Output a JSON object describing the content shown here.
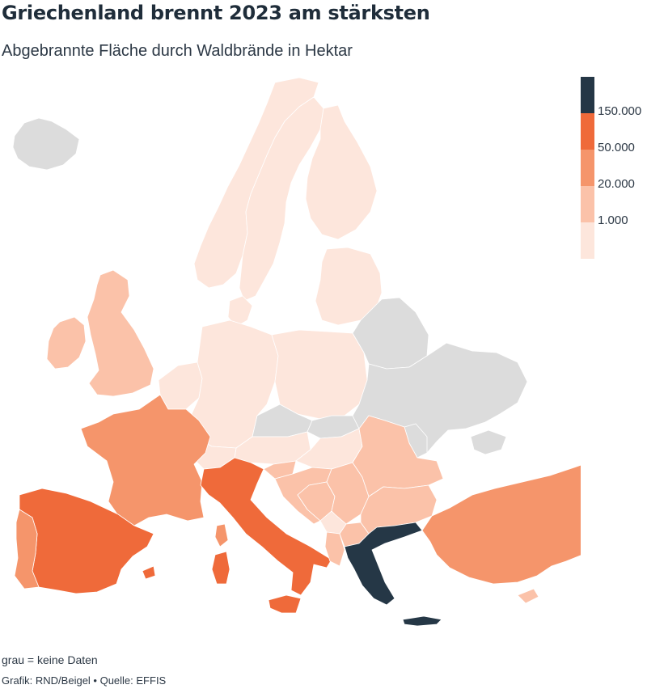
{
  "title": "Griechenland brennt 2023 am stärksten",
  "subtitle": "Abgebrannte Fläche durch Waldbrände in Hektar",
  "legend": {
    "bins": [
      {
        "label": "",
        "color": "#253746"
      },
      {
        "label": "150.000",
        "color": "#ef6a3a"
      },
      {
        "label": "50.000",
        "color": "#f5956b"
      },
      {
        "label": "20.000",
        "color": "#fbc2a9"
      },
      {
        "label": "1.000",
        "color": "#fde6dc"
      }
    ]
  },
  "no_data_color": "#dcdcdc",
  "footnote": "grau = keine Daten",
  "credit": "Grafik: RND/Beigel • Quelle: EFFIS",
  "regions": [
    {
      "id": "iceland",
      "bin": "none"
    },
    {
      "id": "norway",
      "bin": 4
    },
    {
      "id": "sweden",
      "bin": 4
    },
    {
      "id": "finland",
      "bin": 4
    },
    {
      "id": "baltics",
      "bin": 4
    },
    {
      "id": "denmark",
      "bin": 4
    },
    {
      "id": "ireland",
      "bin": 3
    },
    {
      "id": "united-kingdom",
      "bin": 3
    },
    {
      "id": "benelux",
      "bin": 4
    },
    {
      "id": "germany",
      "bin": 4
    },
    {
      "id": "poland",
      "bin": 4
    },
    {
      "id": "czechia",
      "bin": "none"
    },
    {
      "id": "slovakia",
      "bin": "none"
    },
    {
      "id": "austria",
      "bin": 4
    },
    {
      "id": "switzerland",
      "bin": 4
    },
    {
      "id": "hungary",
      "bin": 4
    },
    {
      "id": "belarus",
      "bin": "none"
    },
    {
      "id": "ukraine",
      "bin": "none"
    },
    {
      "id": "moldova",
      "bin": "none"
    },
    {
      "id": "crimea",
      "bin": "none"
    },
    {
      "id": "france",
      "bin": 2
    },
    {
      "id": "corsica",
      "bin": 2
    },
    {
      "id": "spain",
      "bin": 1
    },
    {
      "id": "balearics",
      "bin": 1
    },
    {
      "id": "portugal",
      "bin": 2
    },
    {
      "id": "italy",
      "bin": 1
    },
    {
      "id": "sardinia",
      "bin": 1
    },
    {
      "id": "sicily",
      "bin": 1
    },
    {
      "id": "slovenia",
      "bin": 3
    },
    {
      "id": "croatia",
      "bin": 3
    },
    {
      "id": "bosnia",
      "bin": 3
    },
    {
      "id": "serbia",
      "bin": 3
    },
    {
      "id": "montenegro-kosovo",
      "bin": 4
    },
    {
      "id": "albania",
      "bin": 3
    },
    {
      "id": "north-macedonia",
      "bin": 3
    },
    {
      "id": "romania",
      "bin": 3
    },
    {
      "id": "bulgaria",
      "bin": 3
    },
    {
      "id": "greece",
      "bin": 0
    },
    {
      "id": "crete",
      "bin": 0
    },
    {
      "id": "turkey",
      "bin": 2
    },
    {
      "id": "cyprus",
      "bin": 3
    }
  ]
}
